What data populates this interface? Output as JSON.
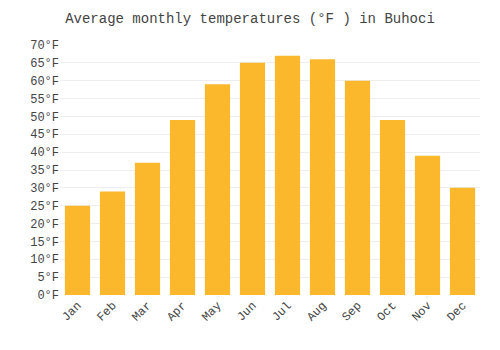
{
  "chart_data": {
    "type": "bar",
    "title": "Average monthly temperatures (°F ) in Buhoci",
    "categories": [
      "Jan",
      "Feb",
      "Mar",
      "Apr",
      "May",
      "Jun",
      "Jul",
      "Aug",
      "Sep",
      "Oct",
      "Nov",
      "Dec"
    ],
    "values": [
      25,
      29,
      37,
      49,
      59,
      65,
      67,
      66,
      60,
      49,
      39,
      30
    ],
    "color": "#FCB82D",
    "ylim": [
      0,
      70
    ],
    "yticks": [
      {
        "value": 0,
        "label": "0°F"
      },
      {
        "value": 5,
        "label": "5°F"
      },
      {
        "value": 10,
        "label": "10°F"
      },
      {
        "value": 15,
        "label": "15°F"
      },
      {
        "value": 20,
        "label": "20°F"
      },
      {
        "value": 25,
        "label": "25°F"
      },
      {
        "value": 30,
        "label": "30°F"
      },
      {
        "value": 35,
        "label": "35°F"
      },
      {
        "value": 40,
        "label": "40°F"
      },
      {
        "value": 45,
        "label": "45°F"
      },
      {
        "value": 50,
        "label": "50°F"
      },
      {
        "value": 55,
        "label": "55°F"
      },
      {
        "value": 60,
        "label": "60°F"
      },
      {
        "value": 65,
        "label": "65°F"
      },
      {
        "value": 70,
        "label": "70°F"
      }
    ],
    "grid": true
  }
}
